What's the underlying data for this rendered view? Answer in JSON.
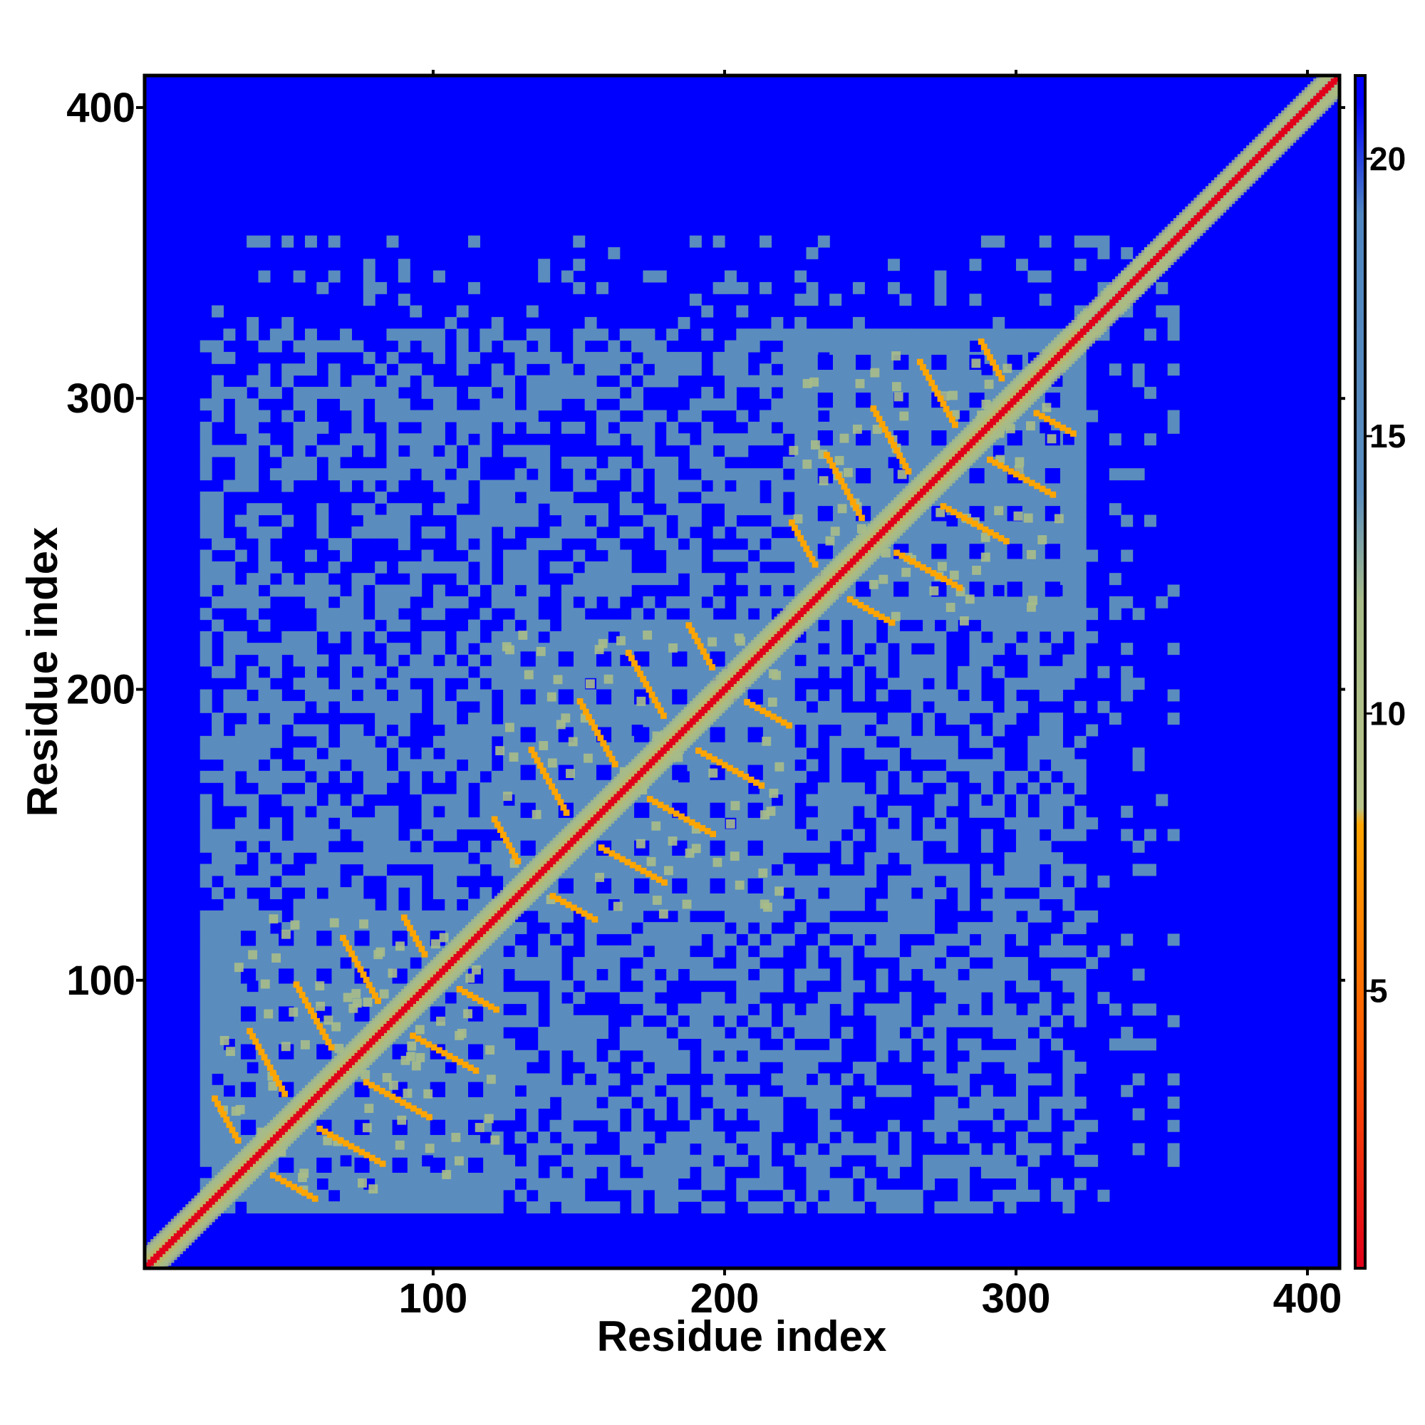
{
  "chart_data": {
    "type": "heatmap",
    "title": "",
    "xlabel": "Residue index",
    "ylabel": "Residue index",
    "xlim": [
      1,
      411
    ],
    "ylim": [
      1,
      411
    ],
    "x_ticks": [
      100,
      200,
      300,
      400
    ],
    "y_ticks": [
      100,
      200,
      300,
      400
    ],
    "matrix_symmetric": true,
    "grid": false,
    "colorbar": {
      "position": "right",
      "range": [
        0,
        21.5
      ],
      "ticks": [
        5,
        10,
        15,
        20
      ],
      "stops": [
        {
          "value": 0,
          "color": "#e0001a"
        },
        {
          "value": 4,
          "color": "#ff5a00"
        },
        {
          "value": 8,
          "color": "#ffa500"
        },
        {
          "value": 8.3,
          "color": "#b8c48a"
        },
        {
          "value": 12,
          "color": "#a8bc88"
        },
        {
          "value": 14,
          "color": "#5a8cbe"
        },
        {
          "value": 19,
          "color": "#4f86c0"
        },
        {
          "value": 21,
          "color": "#0000ff"
        }
      ]
    },
    "colors": {
      "far": "#0000ff",
      "mid": "#5a8cbe",
      "near": "#a8bc88",
      "contact": "#ffa500",
      "diagonal": "#e0001a"
    },
    "domains": [
      {
        "start": 24,
        "end": 120,
        "center": 68
      },
      {
        "start": 120,
        "end": 220,
        "center": 170
      },
      {
        "start": 222,
        "end": 318,
        "center": 270
      }
    ],
    "tail_helix": [
      320,
      411
    ]
  }
}
